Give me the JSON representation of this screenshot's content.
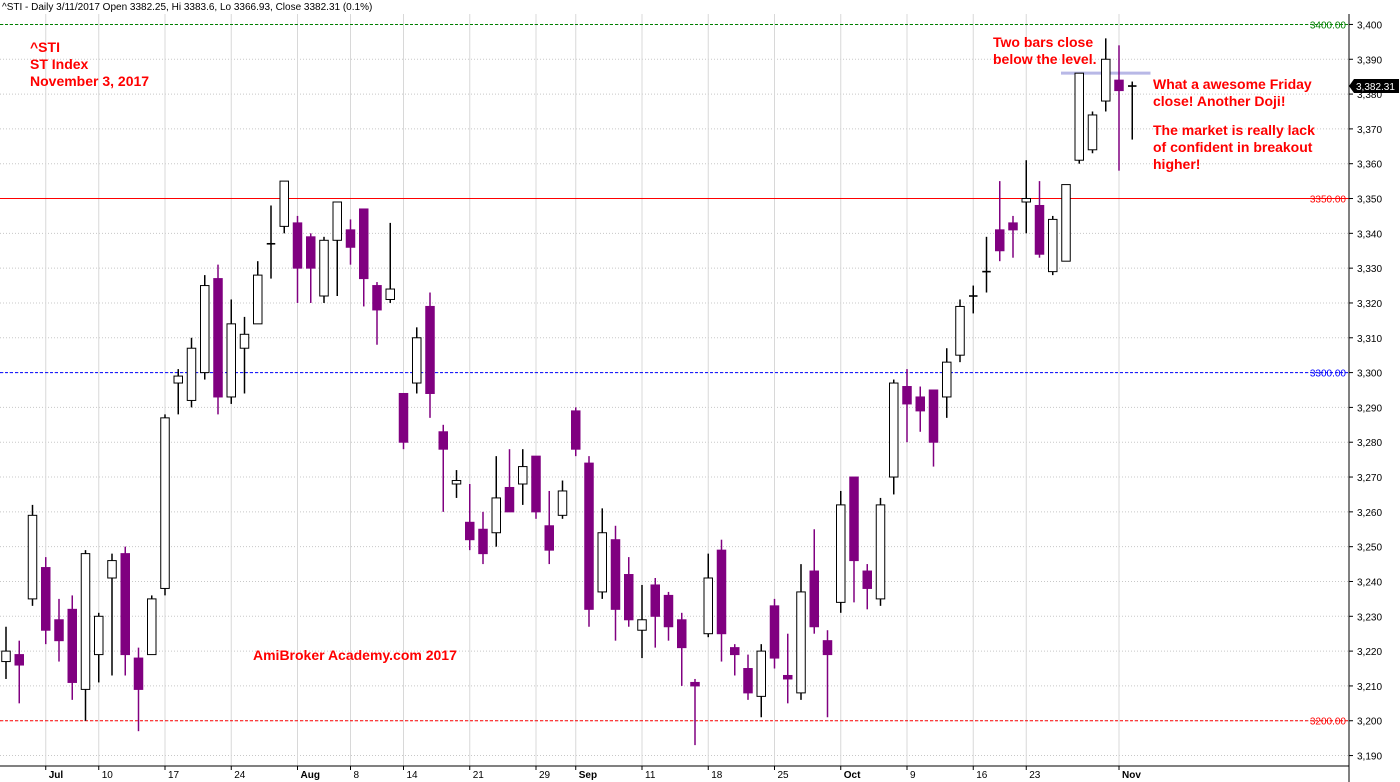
{
  "header": {
    "text": "^STI - Daily 3/11/2017 Open 3382.25, Hi 3383.6, Lo 3366.93, Close 3382.31 (0.1%)"
  },
  "colors": {
    "bear": "#800080",
    "bull_border": "#000000",
    "bull_fill": "#ffffff",
    "annotation": "#ff0000",
    "grid": "#c8c8c8"
  },
  "annotations": {
    "symbol": "^STI",
    "name": "ST Index",
    "date": "November 3, 2017",
    "two_bars": "Two bars close\nbelow the level.",
    "friday": "What a awesome Friday\nclose! Another Doji!",
    "market": "The market is really lack\nof confident in breakout\nhigher!",
    "watermark": "AmiBroker Academy.com   2017"
  },
  "chart_data": {
    "type": "candlestick",
    "ylim": [
      3187,
      3403
    ],
    "y_ticks": [
      3190,
      3200,
      3210,
      3220,
      3230,
      3240,
      3250,
      3260,
      3270,
      3280,
      3290,
      3300,
      3310,
      3320,
      3330,
      3340,
      3350,
      3360,
      3370,
      3380,
      3390,
      3400
    ],
    "y_tick_labels": [
      "3,190",
      "3,200",
      "3,210",
      "3,220",
      "3,230",
      "3,240",
      "3,250",
      "3,260",
      "3,270",
      "3,280",
      "3,290",
      "3,300",
      "3,310",
      "3,320",
      "3,330",
      "3,340",
      "3,350",
      "3,360",
      "3,370",
      "3,380",
      "3,390",
      "3,400"
    ],
    "x_labels": [
      {
        "label": "Jul",
        "i": 3,
        "bold": true
      },
      {
        "label": "10",
        "i": 7,
        "bold": false
      },
      {
        "label": "17",
        "i": 12,
        "bold": false
      },
      {
        "label": "24",
        "i": 17,
        "bold": false
      },
      {
        "label": "Aug",
        "i": 22,
        "bold": true
      },
      {
        "label": "8",
        "i": 26,
        "bold": false
      },
      {
        "label": "14",
        "i": 30,
        "bold": false
      },
      {
        "label": "21",
        "i": 35,
        "bold": false
      },
      {
        "label": "29",
        "i": 40,
        "bold": false
      },
      {
        "label": "Sep",
        "i": 43,
        "bold": true
      },
      {
        "label": "11",
        "i": 48,
        "bold": false
      },
      {
        "label": "18",
        "i": 53,
        "bold": false
      },
      {
        "label": "25",
        "i": 58,
        "bold": false
      },
      {
        "label": "Oct",
        "i": 63,
        "bold": true
      },
      {
        "label": "9",
        "i": 68,
        "bold": false
      },
      {
        "label": "16",
        "i": 73,
        "bold": false
      },
      {
        "label": "23",
        "i": 77,
        "bold": false
      },
      {
        "label": "Nov",
        "i": 84,
        "bold": true
      }
    ],
    "levels": [
      {
        "value": 3400,
        "label": "3400.00",
        "color": "#008000",
        "style": "dashed"
      },
      {
        "value": 3350,
        "label": "3350.00",
        "color": "#ff0000",
        "style": "solid"
      },
      {
        "value": 3300,
        "label": "3300.00",
        "color": "#0000ff",
        "style": "dashed"
      },
      {
        "value": 3200,
        "label": "3200.00",
        "color": "#ff0000",
        "style": "dashed"
      }
    ],
    "last_price": {
      "value": 3382.31,
      "label": "3,382.31"
    },
    "highlight_line": {
      "value": 3386,
      "from_i": 80,
      "to_i": 86,
      "color": "#b8b8e6"
    },
    "candles": [
      {
        "o": 3217,
        "h": 3227,
        "l": 3212,
        "c": 3220
      },
      {
        "o": 3219,
        "h": 3223,
        "l": 3205,
        "c": 3216
      },
      {
        "o": 3235,
        "h": 3262,
        "l": 3233,
        "c": 3259
      },
      {
        "o": 3244,
        "h": 3247,
        "l": 3222,
        "c": 3226
      },
      {
        "o": 3229,
        "h": 3235,
        "l": 3217,
        "c": 3223
      },
      {
        "o": 3232,
        "h": 3236,
        "l": 3206,
        "c": 3211
      },
      {
        "o": 3209,
        "h": 3249,
        "l": 3200,
        "c": 3248
      },
      {
        "o": 3219,
        "h": 3231,
        "l": 3211,
        "c": 3230
      },
      {
        "o": 3241,
        "h": 3248,
        "l": 3213,
        "c": 3246
      },
      {
        "o": 3248,
        "h": 3250,
        "l": 3213,
        "c": 3219
      },
      {
        "o": 3218,
        "h": 3221,
        "l": 3197,
        "c": 3209
      },
      {
        "o": 3219,
        "h": 3236,
        "l": 3219,
        "c": 3235
      },
      {
        "o": 3238,
        "h": 3288,
        "l": 3236,
        "c": 3287
      },
      {
        "o": 3297,
        "h": 3301,
        "l": 3288,
        "c": 3299
      },
      {
        "o": 3292,
        "h": 3310,
        "l": 3290,
        "c": 3307
      },
      {
        "o": 3300,
        "h": 3328,
        "l": 3298,
        "c": 3325
      },
      {
        "o": 3327,
        "h": 3331,
        "l": 3288,
        "c": 3293
      },
      {
        "o": 3293,
        "h": 3321,
        "l": 3291,
        "c": 3314
      },
      {
        "o": 3307,
        "h": 3316,
        "l": 3294,
        "c": 3311
      },
      {
        "o": 3314,
        "h": 3332,
        "l": 3314,
        "c": 3328
      },
      {
        "o": 3337,
        "h": 3348,
        "l": 3327,
        "c": 3337
      },
      {
        "o": 3342,
        "h": 3355,
        "l": 3340,
        "c": 3355
      },
      {
        "o": 3343,
        "h": 3345,
        "l": 3320,
        "c": 3330
      },
      {
        "o": 3339,
        "h": 3340,
        "l": 3320,
        "c": 3330
      },
      {
        "o": 3322,
        "h": 3339,
        "l": 3320,
        "c": 3338
      },
      {
        "o": 3338,
        "h": 3349,
        "l": 3322,
        "c": 3349
      },
      {
        "o": 3341,
        "h": 3344,
        "l": 3331,
        "c": 3336
      },
      {
        "o": 3347,
        "h": 3347,
        "l": 3319,
        "c": 3327
      },
      {
        "o": 3325,
        "h": 3326,
        "l": 3308,
        "c": 3318
      },
      {
        "o": 3321,
        "h": 3343,
        "l": 3320,
        "c": 3324
      },
      {
        "o": 3294,
        "h": 3294,
        "l": 3278,
        "c": 3280
      },
      {
        "o": 3297,
        "h": 3313,
        "l": 3294,
        "c": 3310
      },
      {
        "o": 3319,
        "h": 3323,
        "l": 3287,
        "c": 3294
      },
      {
        "o": 3283,
        "h": 3285,
        "l": 3260,
        "c": 3278
      },
      {
        "o": 3268,
        "h": 3272,
        "l": 3264,
        "c": 3269
      },
      {
        "o": 3257,
        "h": 3268,
        "l": 3249,
        "c": 3252
      },
      {
        "o": 3255,
        "h": 3260,
        "l": 3245,
        "c": 3248
      },
      {
        "o": 3254,
        "h": 3276,
        "l": 3250,
        "c": 3264
      },
      {
        "o": 3267,
        "h": 3278,
        "l": 3261,
        "c": 3260
      },
      {
        "o": 3268,
        "h": 3278,
        "l": 3262,
        "c": 3273
      },
      {
        "o": 3276,
        "h": 3276,
        "l": 3258,
        "c": 3260
      },
      {
        "o": 3256,
        "h": 3266,
        "l": 3245,
        "c": 3249
      },
      {
        "o": 3259,
        "h": 3269,
        "l": 3258,
        "c": 3266
      },
      {
        "o": 3289,
        "h": 3290,
        "l": 3276,
        "c": 3278
      },
      {
        "o": 3274,
        "h": 3276,
        "l": 3227,
        "c": 3232
      },
      {
        "o": 3237,
        "h": 3261,
        "l": 3235,
        "c": 3254
      },
      {
        "o": 3252,
        "h": 3256,
        "l": 3223,
        "c": 3232
      },
      {
        "o": 3242,
        "h": 3247,
        "l": 3227,
        "c": 3229
      },
      {
        "o": 3226,
        "h": 3239,
        "l": 3218,
        "c": 3229
      },
      {
        "o": 3239,
        "h": 3241,
        "l": 3221,
        "c": 3230
      },
      {
        "o": 3236,
        "h": 3237,
        "l": 3223,
        "c": 3227
      },
      {
        "o": 3229,
        "h": 3231,
        "l": 3210,
        "c": 3221
      },
      {
        "o": 3211,
        "h": 3212,
        "l": 3193,
        "c": 3210
      },
      {
        "o": 3225,
        "h": 3248,
        "l": 3224,
        "c": 3241
      },
      {
        "o": 3249,
        "h": 3252,
        "l": 3217,
        "c": 3225
      },
      {
        "o": 3221,
        "h": 3222,
        "l": 3213,
        "c": 3219
      },
      {
        "o": 3215,
        "h": 3219,
        "l": 3206,
        "c": 3208
      },
      {
        "o": 3207,
        "h": 3222,
        "l": 3201,
        "c": 3220
      },
      {
        "o": 3233,
        "h": 3235,
        "l": 3215,
        "c": 3218
      },
      {
        "o": 3213,
        "h": 3225,
        "l": 3205,
        "c": 3212
      },
      {
        "o": 3208,
        "h": 3245,
        "l": 3206,
        "c": 3237
      },
      {
        "o": 3243,
        "h": 3255,
        "l": 3225,
        "c": 3227
      },
      {
        "o": 3223,
        "h": 3226,
        "l": 3201,
        "c": 3219
      },
      {
        "o": 3234,
        "h": 3266,
        "l": 3231,
        "c": 3262
      },
      {
        "o": 3270,
        "h": 3270,
        "l": 3234,
        "c": 3246
      },
      {
        "o": 3243,
        "h": 3245,
        "l": 3232,
        "c": 3238
      },
      {
        "o": 3235,
        "h": 3264,
        "l": 3233,
        "c": 3262
      },
      {
        "o": 3270,
        "h": 3298,
        "l": 3265,
        "c": 3297
      },
      {
        "o": 3296,
        "h": 3301,
        "l": 3280,
        "c": 3291
      },
      {
        "o": 3293,
        "h": 3296,
        "l": 3283,
        "c": 3289
      },
      {
        "o": 3295,
        "h": 3295,
        "l": 3273,
        "c": 3280
      },
      {
        "o": 3293,
        "h": 3307,
        "l": 3287,
        "c": 3303
      },
      {
        "o": 3305,
        "h": 3321,
        "l": 3303,
        "c": 3319
      },
      {
        "o": 3322,
        "h": 3325,
        "l": 3317,
        "c": 3322
      },
      {
        "o": 3329,
        "h": 3339,
        "l": 3323,
        "c": 3329
      },
      {
        "o": 3341,
        "h": 3355,
        "l": 3332,
        "c": 3335
      },
      {
        "o": 3343,
        "h": 3345,
        "l": 3333,
        "c": 3341
      },
      {
        "o": 3349,
        "h": 3361,
        "l": 3340,
        "c": 3350
      },
      {
        "o": 3348,
        "h": 3355,
        "l": 3333,
        "c": 3334
      },
      {
        "o": 3329,
        "h": 3345,
        "l": 3328,
        "c": 3344
      },
      {
        "o": 3332,
        "h": 3354,
        "l": 3332,
        "c": 3354
      },
      {
        "o": 3361,
        "h": 3386,
        "l": 3360,
        "c": 3386
      },
      {
        "o": 3364,
        "h": 3375,
        "l": 3363,
        "c": 3374
      },
      {
        "o": 3378,
        "h": 3396,
        "l": 3375,
        "c": 3390
      },
      {
        "o": 3384,
        "h": 3394,
        "l": 3358,
        "c": 3381
      },
      {
        "o": 3382.25,
        "h": 3383.6,
        "l": 3366.93,
        "c": 3382.31
      }
    ]
  }
}
